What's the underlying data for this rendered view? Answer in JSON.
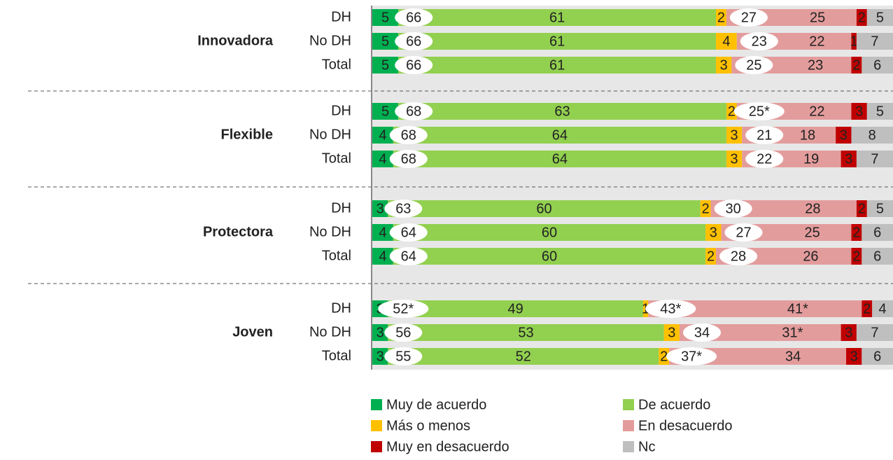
{
  "chart_data": {
    "type": "bar",
    "orientation": "horizontal",
    "stacked": true,
    "groups": [
      "Innovadora",
      "Flexible",
      "Protectora",
      "Joven"
    ],
    "categories": [
      "DH",
      "No DH",
      "Total",
      "DH",
      "No DH",
      "Total",
      "DH",
      "No DH",
      "Total",
      "DH",
      "No DH",
      "Total"
    ],
    "xlim": [
      0,
      100
    ],
    "series": [
      {
        "name": "Muy de acuerdo",
        "color": "#00b050",
        "values": [
          5,
          5,
          5,
          5,
          4,
          4,
          3,
          4,
          4,
          3,
          3,
          3
        ]
      },
      {
        "name": "De acuerdo",
        "color": "#92d050",
        "values": [
          61,
          61,
          61,
          63,
          64,
          64,
          60,
          60,
          60,
          49,
          53,
          52
        ]
      },
      {
        "name": "Más o menos",
        "color": "#ffc000",
        "values": [
          2,
          4,
          3,
          2,
          3,
          3,
          2,
          3,
          2,
          1,
          3,
          2
        ]
      },
      {
        "name": "En desacuerdo",
        "color": "#e39c9c",
        "values": [
          25,
          22,
          23,
          22,
          18,
          19,
          28,
          25,
          26,
          41,
          31,
          34
        ],
        "value_labels": [
          "25",
          "22",
          "23",
          "22",
          "18",
          "19",
          "28",
          "25",
          "26",
          "41*",
          "31*",
          "34"
        ]
      },
      {
        "name": "Muy en desacuerdo",
        "color": "#c00000",
        "values": [
          2,
          1,
          2,
          3,
          3,
          3,
          2,
          2,
          2,
          2,
          3,
          3
        ]
      },
      {
        "name": "Nc",
        "color": "#bfbfbf",
        "values": [
          5,
          7,
          6,
          5,
          8,
          7,
          5,
          6,
          6,
          4,
          7,
          6
        ]
      }
    ],
    "net_agree": {
      "values": [
        66,
        66,
        66,
        68,
        68,
        68,
        63,
        64,
        64,
        52,
        56,
        55
      ],
      "value_labels": [
        "66",
        "66",
        "66",
        "68",
        "68",
        "68",
        "63",
        "64",
        "64",
        "52*",
        "56",
        "55"
      ]
    },
    "net_disagree": {
      "values": [
        27,
        23,
        25,
        25,
        21,
        22,
        30,
        27,
        28,
        43,
        34,
        37
      ],
      "value_labels": [
        "27",
        "23",
        "25",
        "25*",
        "21",
        "22",
        "30",
        "27",
        "28",
        "43*",
        "34",
        "37*"
      ]
    }
  }
}
